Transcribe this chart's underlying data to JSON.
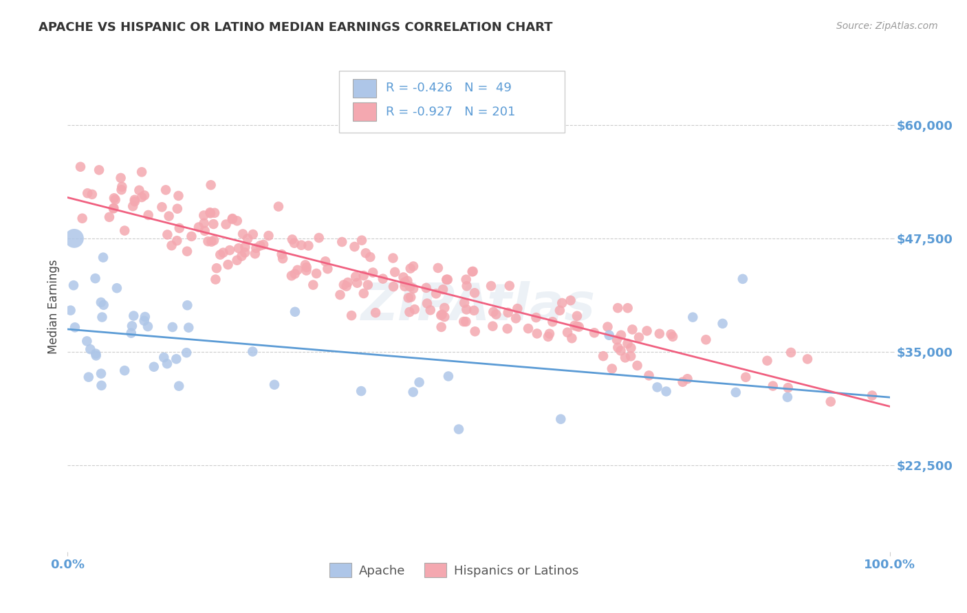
{
  "title": "APACHE VS HISPANIC OR LATINO MEDIAN EARNINGS CORRELATION CHART",
  "source": "Source: ZipAtlas.com",
  "ylabel": "Median Earnings",
  "xlim": [
    0.0,
    1.0
  ],
  "ylim": [
    13000,
    67000
  ],
  "yticks": [
    22500,
    35000,
    47500,
    60000
  ],
  "ytick_labels": [
    "$22,500",
    "$35,000",
    "$47,500",
    "$60,000"
  ],
  "xticks": [
    0.0,
    1.0
  ],
  "xtick_labels": [
    "0.0%",
    "100.0%"
  ],
  "background_color": "#ffffff",
  "grid_color": "#cccccc",
  "watermark": "ZIPAtlas",
  "apache_color": "#aec6e8",
  "hispanic_color": "#f4a8b0",
  "apache_line_color": "#5b9bd5",
  "hispanic_line_color": "#f06080",
  "apache_r": -0.426,
  "apache_n": 49,
  "hispanic_r": -0.927,
  "hispanic_n": 201,
  "legend_label_apache": "Apache",
  "legend_label_hispanic": "Hispanics or Latinos",
  "title_fontsize": 13,
  "tick_label_color": "#5b9bd5",
  "apache_line_x0": 0.0,
  "apache_line_x1": 1.0,
  "apache_line_y0": 37500,
  "apache_line_y1": 30000,
  "hispanic_line_x0": 0.0,
  "hispanic_line_x1": 1.0,
  "hispanic_line_y0": 52000,
  "hispanic_line_y1": 29000
}
